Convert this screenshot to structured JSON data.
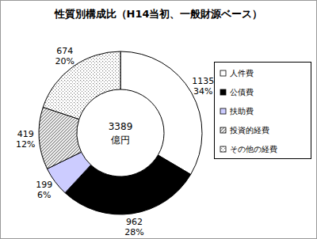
{
  "chart_data": {
    "type": "pie",
    "title": "性質別構成比（H14当初、一般財源ベース）",
    "categories": [
      "人件費",
      "公債費",
      "扶助費",
      "投資的経費",
      "その他の経費"
    ],
    "values": [
      1135,
      962,
      199,
      419,
      674
    ],
    "percentages": [
      {
        "value": 34,
        "label": "34%"
      },
      {
        "value": 28,
        "label": "28%"
      },
      {
        "value": 6,
        "label": "6%"
      },
      {
        "value": 12,
        "label": "12%"
      },
      {
        "value": 20,
        "label": "20%"
      }
    ],
    "center_label": {
      "value": 3389,
      "unit": "億円"
    },
    "colors": [
      "#ffffff",
      "#000000",
      "#ccccff",
      "#808080",
      "#808080"
    ],
    "data_labels": true,
    "legend": "right"
  }
}
